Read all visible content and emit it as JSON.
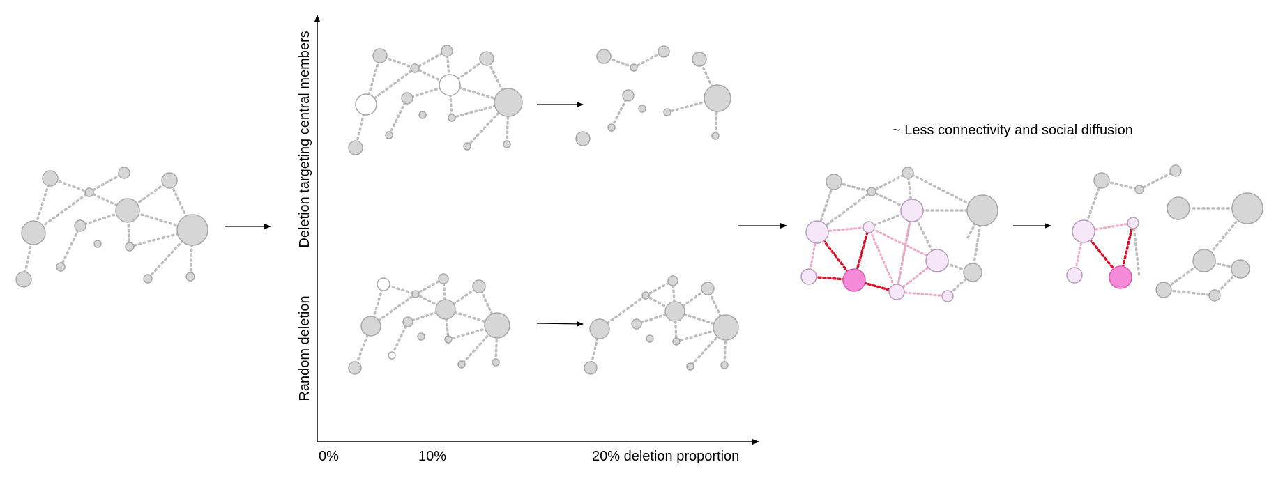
{
  "axis": {
    "y_label_top": "Deletion targeting central members",
    "y_label_bottom": "Random deletion",
    "x_tick_0": "0%",
    "x_tick_10": "10%",
    "x_tick_20": "20% deletion proportion"
  },
  "annotation": "~ Less connectivity and social diffusion",
  "colors": {
    "node_fill": "#d6d6d6",
    "node_stroke": "#a8a8a8",
    "edge": "#bdbdbd",
    "removed_fill": "#ffffff",
    "highlight_fill": "#f5e6f8",
    "highlight_stroke": "#b89bbf",
    "source_fill": "#f58ad8",
    "strong_edge": "#e0102a",
    "weak_edge": "#f2a6c6"
  }
}
